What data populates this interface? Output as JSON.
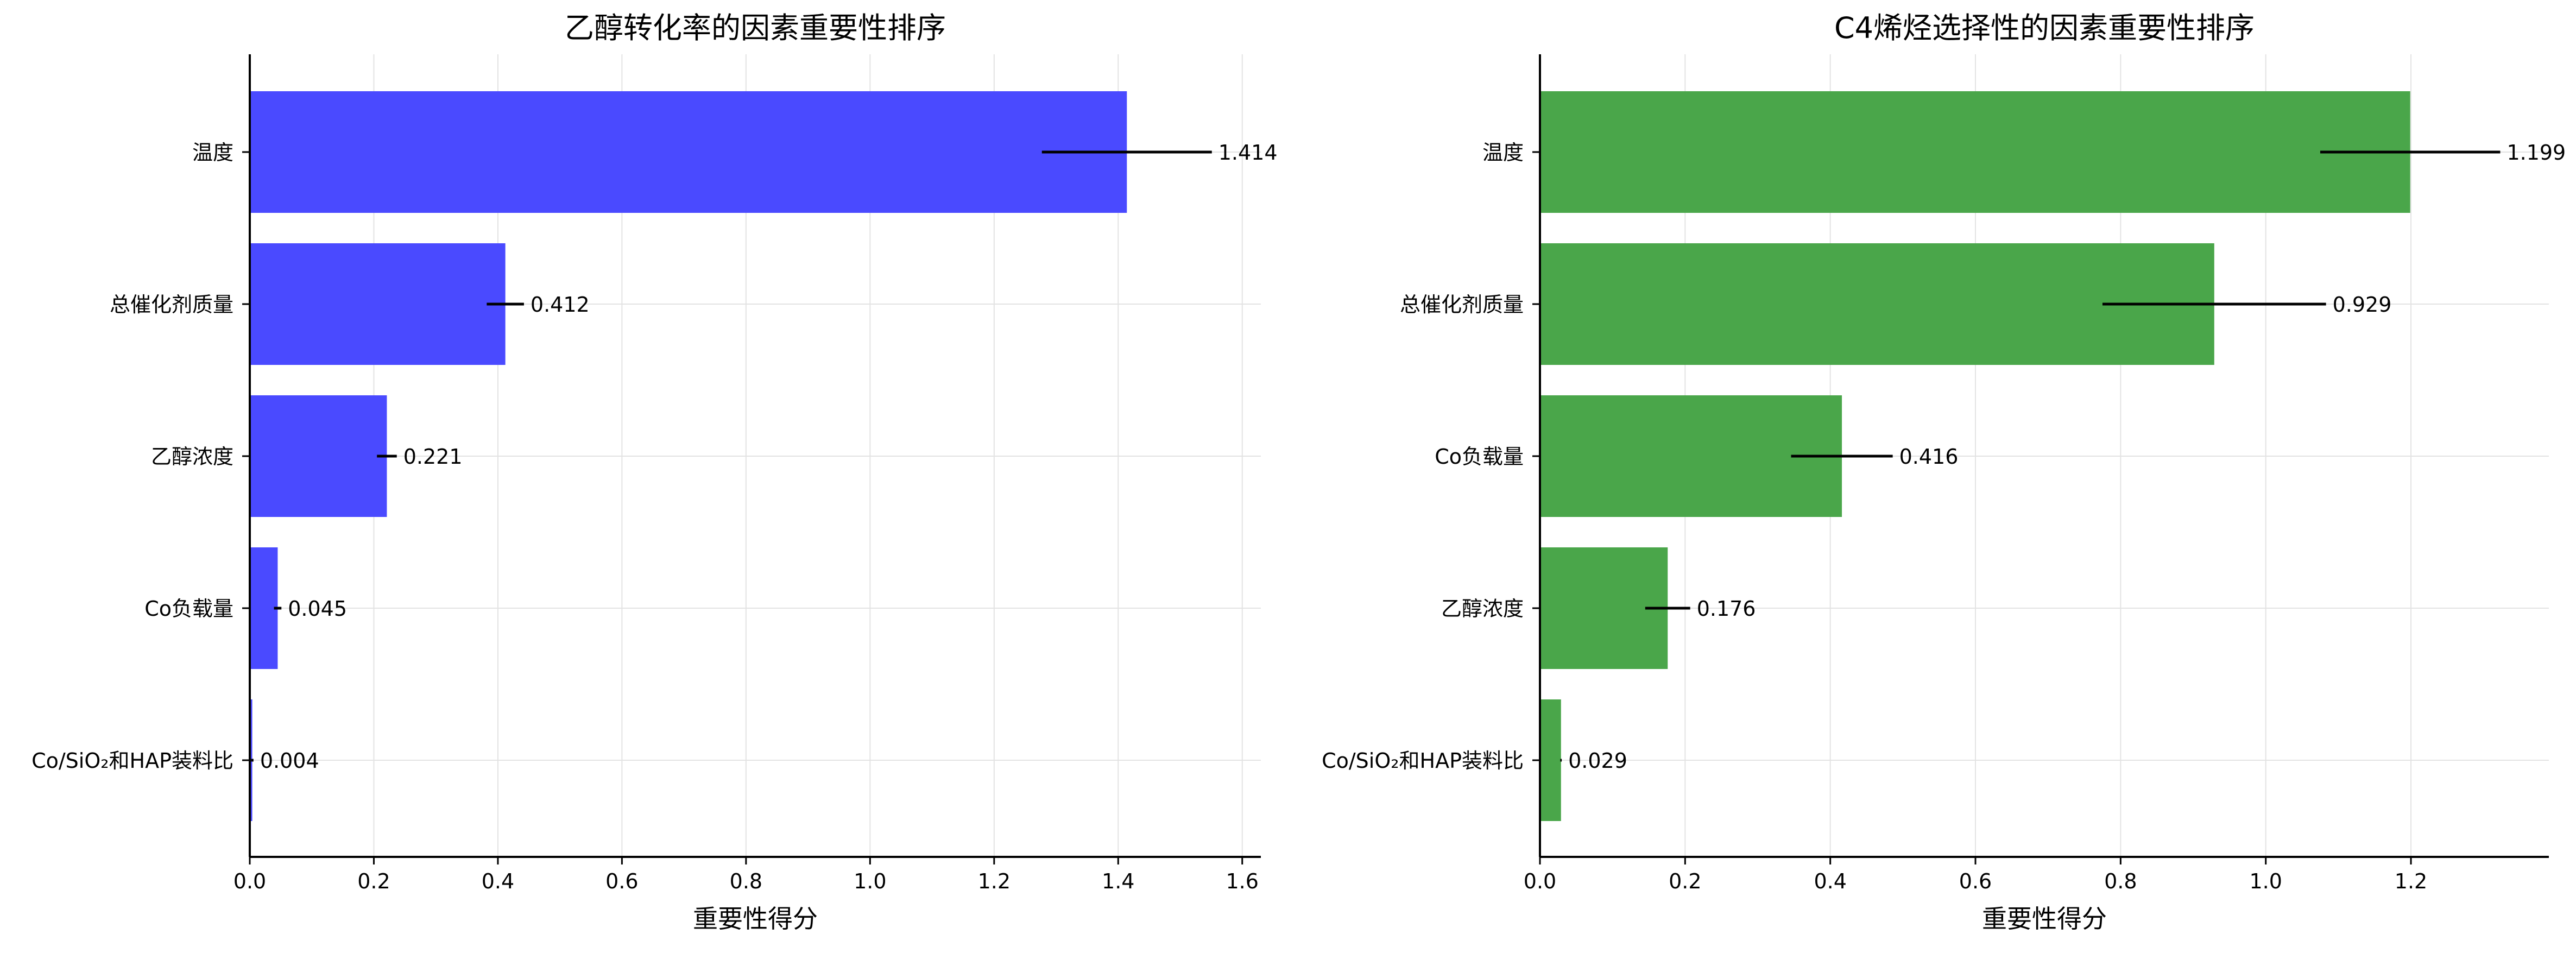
{
  "chart_data": [
    {
      "type": "bar",
      "orientation": "horizontal",
      "title": "乙醇转化率的因素重要性排序",
      "xlabel": "重要性得分",
      "ylabel": "",
      "categories": [
        "温度",
        "总催化剂质量",
        "乙醇浓度",
        "Co负载量",
        "Co/SiO₂和HAP装料比"
      ],
      "values": [
        1.414,
        0.412,
        0.221,
        0.045,
        0.004
      ],
      "errors": [
        0.137,
        0.03,
        0.016,
        0.006,
        0.002
      ],
      "value_labels": [
        "1.414",
        "0.412",
        "0.221",
        "0.045",
        "0.004"
      ],
      "xlim": [
        0,
        1.63
      ],
      "xticks": [
        "0.0",
        "0.2",
        "0.4",
        "0.6",
        "0.8",
        "1.0",
        "1.2",
        "1.4",
        "1.6"
      ],
      "grid": true,
      "bar_color": "#4a4aff",
      "error_color": "#000000"
    },
    {
      "type": "bar",
      "orientation": "horizontal",
      "title": "C4烯烃选择性的因素重要性排序",
      "xlabel": "重要性得分",
      "ylabel": "",
      "categories": [
        "温度",
        "总催化剂质量",
        "Co负载量",
        "乙醇浓度",
        "Co/SiO₂和HAP装料比"
      ],
      "values": [
        1.199,
        0.929,
        0.416,
        0.176,
        0.029
      ],
      "errors": [
        0.124,
        0.154,
        0.07,
        0.031,
        0.001
      ],
      "value_labels": [
        "1.199",
        "0.929",
        "0.416",
        "0.176",
        "0.029"
      ],
      "xlim": [
        0,
        1.39
      ],
      "xticks": [
        "0.0",
        "0.2",
        "0.4",
        "0.6",
        "0.8",
        "1.0",
        "1.2"
      ],
      "grid": true,
      "bar_color": "#4aa64a",
      "error_color": "#000000"
    }
  ]
}
